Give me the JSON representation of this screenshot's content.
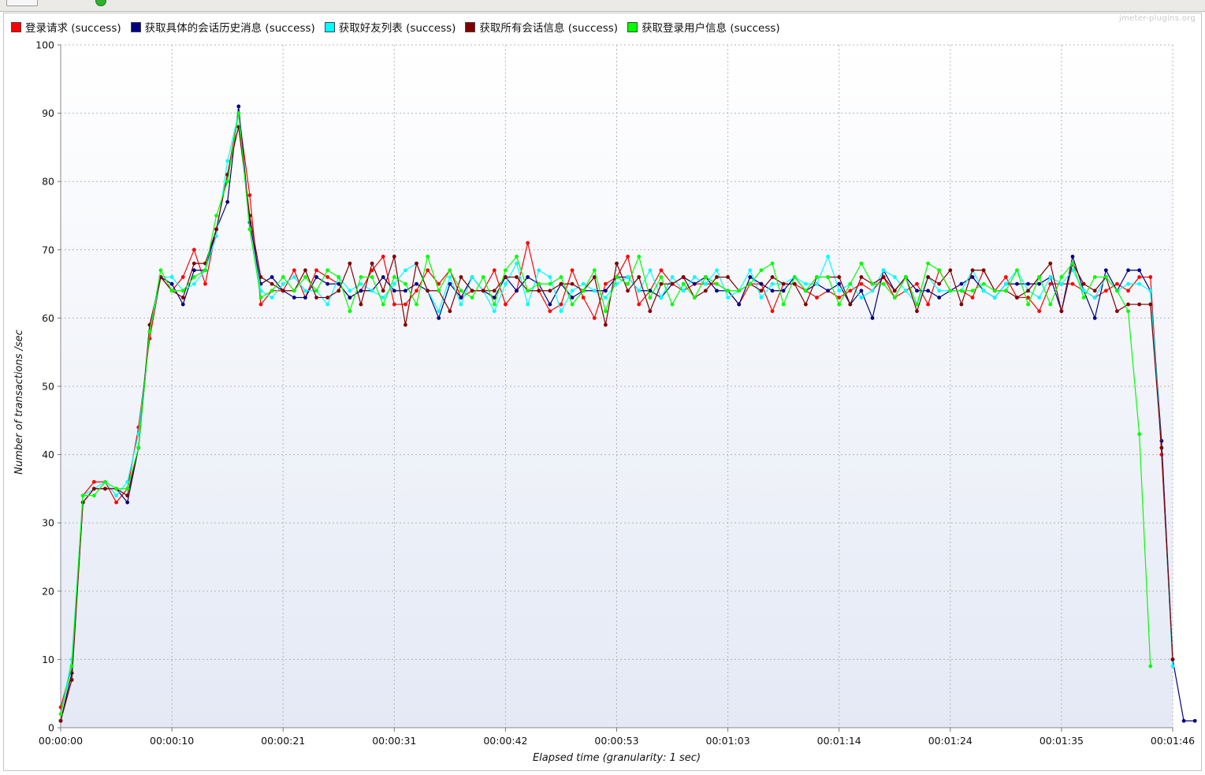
{
  "header": {
    "watermark": "jmeter-plugins.org"
  },
  "chart_data": {
    "type": "line",
    "title": "",
    "xlabel": "Elapsed time (granularity: 1 sec)",
    "ylabel": "Number of transactions /sec",
    "ylim": [
      0,
      100
    ],
    "xlim_seconds": [
      0,
      100
    ],
    "grid": true,
    "legend_position": "top",
    "yticks": [
      "0",
      "10",
      "20",
      "30",
      "40",
      "50",
      "60",
      "70",
      "80",
      "90",
      "100"
    ],
    "xticks": [
      "00:00:00",
      "00:00:10",
      "00:00:21",
      "00:00:31",
      "00:00:42",
      "00:00:53",
      "00:01:03",
      "00:01:14",
      "00:01:24",
      "00:01:35",
      "00:01:46"
    ],
    "series": [
      {
        "name": "登录请求 (success)",
        "color": "#ff0000",
        "values": [
          3,
          9,
          34,
          36,
          36,
          33,
          35,
          44,
          57,
          66,
          64,
          66,
          70,
          65,
          73,
          81,
          90,
          78,
          62,
          64,
          64,
          67,
          63,
          67,
          66,
          65,
          63,
          64,
          67,
          69,
          62,
          62,
          64,
          67,
          65,
          67,
          63,
          64,
          64,
          67,
          62,
          64,
          71,
          64,
          61,
          62,
          67,
          63,
          60,
          65,
          66,
          69,
          62,
          64,
          67,
          65,
          64,
          65,
          65,
          65,
          64,
          62,
          65,
          65,
          61,
          65,
          65,
          64,
          63,
          64,
          63,
          64,
          65,
          64,
          66,
          63,
          64,
          65,
          62,
          67,
          64,
          64,
          63,
          67,
          64,
          66,
          63,
          63,
          61,
          65,
          65,
          65,
          64,
          63,
          64,
          65,
          64,
          66,
          66,
          40,
          10
        ],
        "series_extra": []
      },
      {
        "name": "获取具体的会话历史消息 (success)",
        "color": "#000080",
        "values": [
          1,
          8,
          33,
          35,
          35,
          35,
          33,
          41,
          58,
          66,
          65,
          62,
          67,
          67,
          73,
          77,
          91,
          74,
          65,
          66,
          64,
          63,
          63,
          66,
          65,
          65,
          63,
          64,
          64,
          66,
          64,
          64,
          65,
          64,
          60,
          65,
          63,
          66,
          64,
          63,
          66,
          64,
          66,
          65,
          62,
          65,
          63,
          64,
          64,
          64,
          66,
          66,
          64,
          64,
          63,
          65,
          66,
          65,
          66,
          64,
          64,
          62,
          66,
          65,
          64,
          64,
          66,
          64,
          65,
          64,
          65,
          62,
          64,
          60,
          67,
          64,
          66,
          64,
          64,
          63,
          64,
          65,
          66,
          64,
          63,
          65,
          65,
          65,
          65,
          66,
          61,
          69,
          64,
          60,
          67,
          64,
          67,
          67,
          64,
          42,
          10,
          1,
          1
        ],
        "series_extra": []
      },
      {
        "name": "获取好友列表 (success)",
        "color": "#00ffff",
        "values": [
          2,
          10,
          34,
          35,
          36,
          34,
          36,
          43,
          58,
          66,
          66,
          64,
          65,
          67,
          72,
          83,
          90,
          73,
          64,
          63,
          65,
          66,
          64,
          64,
          62,
          66,
          64,
          65,
          64,
          63,
          65,
          67,
          68,
          64,
          61,
          66,
          62,
          66,
          64,
          61,
          65,
          68,
          62,
          67,
          66,
          61,
          64,
          65,
          64,
          63,
          65,
          66,
          64,
          67,
          63,
          66,
          64,
          66,
          65,
          67,
          63,
          64,
          67,
          63,
          65,
          65,
          66,
          65,
          65,
          69,
          64,
          65,
          63,
          64,
          67,
          66,
          64,
          62,
          66,
          64,
          64,
          64,
          67,
          64,
          63,
          65,
          67,
          64,
          63,
          66,
          65,
          67,
          64,
          63,
          66,
          64,
          65,
          65,
          64,
          41,
          9
        ],
        "series_extra": []
      },
      {
        "name": "获取所有会话信息 (success)",
        "color": "#800000",
        "values": [
          1,
          7,
          33,
          35,
          35,
          35,
          34,
          41,
          59,
          66,
          64,
          63,
          68,
          68,
          73,
          81,
          88,
          75,
          66,
          65,
          64,
          64,
          67,
          63,
          63,
          64,
          68,
          62,
          68,
          64,
          69,
          59,
          68,
          64,
          64,
          61,
          66,
          64,
          64,
          64,
          66,
          66,
          64,
          64,
          64,
          65,
          65,
          64,
          66,
          59,
          68,
          64,
          66,
          61,
          65,
          65,
          66,
          63,
          64,
          66,
          66,
          64,
          65,
          64,
          66,
          65,
          65,
          62,
          66,
          66,
          66,
          62,
          66,
          65,
          66,
          64,
          66,
          61,
          66,
          65,
          67,
          62,
          67,
          67,
          64,
          64,
          63,
          64,
          66,
          68,
          61,
          68,
          65,
          64,
          66,
          61,
          62,
          62,
          62,
          41,
          10
        ],
        "series_extra": []
      },
      {
        "name": "获取登录用户信息 (success)",
        "color": "#00ff00",
        "values": [
          2,
          9,
          34,
          34,
          36,
          35,
          35,
          41,
          58,
          67,
          64,
          64,
          66,
          67,
          75,
          80,
          90,
          73,
          63,
          64,
          66,
          64,
          66,
          64,
          67,
          66,
          61,
          66,
          66,
          62,
          66,
          65,
          62,
          69,
          64,
          67,
          64,
          63,
          66,
          62,
          67,
          69,
          64,
          65,
          65,
          66,
          62,
          64,
          67,
          61,
          66,
          65,
          69,
          63,
          66,
          62,
          65,
          63,
          66,
          65,
          64,
          64,
          65,
          67,
          68,
          62,
          66,
          64,
          66,
          66,
          62,
          65,
          68,
          65,
          65,
          63,
          66,
          62,
          68,
          67,
          64,
          64,
          64,
          65,
          64,
          64,
          67,
          62,
          66,
          62,
          66,
          68,
          63,
          66,
          66,
          64,
          61,
          43,
          9
        ],
        "series_extra": []
      }
    ]
  }
}
